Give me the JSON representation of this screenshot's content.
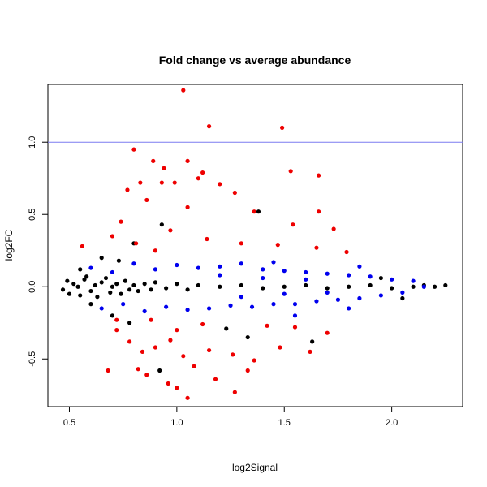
{
  "chart_data": {
    "type": "scatter",
    "title": "Fold change vs average abundance",
    "xlabel": "log2Signal",
    "ylabel": "log2FC",
    "xlim": [
      0.4,
      2.33
    ],
    "ylim": [
      -0.83,
      1.4
    ],
    "xticks": [
      0.5,
      1.0,
      1.5,
      2.0
    ],
    "xtick_labels": [
      "0.5",
      "1.0",
      "1.5",
      "2.0"
    ],
    "yticks": [
      -0.5,
      0.0,
      0.5,
      1.0
    ],
    "ytick_labels": [
      "-0.5",
      "0.0",
      "0.5",
      "1.0"
    ],
    "reference_line": {
      "orientation": "horizontal",
      "y": 1.0,
      "color": "#7b7bf0"
    },
    "grid": false,
    "legend": "none",
    "series": [
      {
        "color": "#000000",
        "points": [
          [
            0.47,
            -0.02
          ],
          [
            0.49,
            0.04
          ],
          [
            0.5,
            -0.05
          ],
          [
            0.52,
            0.02
          ],
          [
            0.54,
            0.0
          ],
          [
            0.55,
            -0.06
          ],
          [
            0.57,
            0.05
          ],
          [
            0.58,
            0.07
          ],
          [
            0.6,
            -0.03
          ],
          [
            0.62,
            0.01
          ],
          [
            0.63,
            -0.07
          ],
          [
            0.65,
            0.03
          ],
          [
            0.67,
            0.06
          ],
          [
            0.69,
            -0.04
          ],
          [
            0.7,
            0.0
          ],
          [
            0.72,
            0.02
          ],
          [
            0.74,
            -0.05
          ],
          [
            0.76,
            0.04
          ],
          [
            0.78,
            -0.02
          ],
          [
            0.8,
            0.01
          ],
          [
            0.82,
            -0.03
          ],
          [
            0.85,
            0.02
          ],
          [
            0.88,
            -0.02
          ],
          [
            0.9,
            0.03
          ],
          [
            0.95,
            -0.01
          ],
          [
            1.0,
            0.02
          ],
          [
            1.05,
            -0.02
          ],
          [
            1.1,
            0.01
          ],
          [
            1.2,
            0.0
          ],
          [
            1.3,
            0.01
          ],
          [
            1.4,
            -0.01
          ],
          [
            1.5,
            0.0
          ],
          [
            1.6,
            0.01
          ],
          [
            1.7,
            -0.01
          ],
          [
            1.8,
            0.0
          ],
          [
            1.9,
            0.01
          ],
          [
            2.0,
            -0.01
          ],
          [
            2.1,
            0.0
          ],
          [
            2.15,
            0.01
          ],
          [
            2.2,
            0.0
          ],
          [
            2.25,
            0.01
          ],
          [
            0.8,
            0.3
          ],
          [
            0.93,
            0.43
          ],
          [
            1.38,
            0.52
          ],
          [
            0.55,
            0.12
          ],
          [
            0.6,
            -0.12
          ],
          [
            0.65,
            0.2
          ],
          [
            0.7,
            -0.2
          ],
          [
            0.73,
            0.18
          ],
          [
            0.78,
            -0.25
          ],
          [
            1.23,
            -0.29
          ],
          [
            1.33,
            -0.35
          ],
          [
            1.63,
            -0.38
          ],
          [
            0.92,
            -0.58
          ],
          [
            2.05,
            -0.08
          ],
          [
            1.95,
            0.06
          ]
        ]
      },
      {
        "color": "#0000ee",
        "points": [
          [
            0.6,
            0.13
          ],
          [
            0.65,
            -0.15
          ],
          [
            0.7,
            0.1
          ],
          [
            0.75,
            -0.12
          ],
          [
            0.8,
            0.16
          ],
          [
            0.85,
            -0.17
          ],
          [
            0.9,
            0.12
          ],
          [
            0.95,
            -0.14
          ],
          [
            1.0,
            0.15
          ],
          [
            1.05,
            -0.16
          ],
          [
            1.1,
            0.13
          ],
          [
            1.15,
            -0.15
          ],
          [
            1.2,
            0.14
          ],
          [
            1.25,
            -0.13
          ],
          [
            1.3,
            0.16
          ],
          [
            1.35,
            -0.14
          ],
          [
            1.4,
            0.12
          ],
          [
            1.45,
            -0.12
          ],
          [
            1.5,
            0.11
          ],
          [
            1.55,
            -0.12
          ],
          [
            1.6,
            0.1
          ],
          [
            1.65,
            -0.1
          ],
          [
            1.7,
            0.09
          ],
          [
            1.75,
            -0.09
          ],
          [
            1.8,
            0.08
          ],
          [
            1.85,
            -0.08
          ],
          [
            1.9,
            0.07
          ],
          [
            1.95,
            -0.06
          ],
          [
            2.0,
            0.05
          ],
          [
            2.05,
            -0.04
          ],
          [
            2.1,
            0.04
          ],
          [
            2.15,
            0.0
          ],
          [
            1.2,
            0.08
          ],
          [
            1.4,
            0.06
          ],
          [
            1.6,
            0.05
          ],
          [
            1.3,
            -0.07
          ],
          [
            1.5,
            -0.05
          ],
          [
            1.7,
            -0.04
          ],
          [
            1.55,
            -0.2
          ],
          [
            1.45,
            0.17
          ],
          [
            1.8,
            -0.15
          ],
          [
            1.85,
            0.14
          ]
        ]
      },
      {
        "color": "#ee0000",
        "points": [
          [
            1.03,
            1.36
          ],
          [
            1.15,
            1.11
          ],
          [
            1.49,
            1.1
          ],
          [
            0.8,
            0.95
          ],
          [
            0.89,
            0.87
          ],
          [
            0.94,
            0.82
          ],
          [
            1.05,
            0.87
          ],
          [
            1.53,
            0.8
          ],
          [
            1.66,
            0.77
          ],
          [
            0.83,
            0.72
          ],
          [
            1.12,
            0.79
          ],
          [
            1.1,
            0.75
          ],
          [
            1.2,
            0.71
          ],
          [
            0.77,
            0.67
          ],
          [
            0.93,
            0.72
          ],
          [
            0.99,
            0.72
          ],
          [
            1.27,
            0.65
          ],
          [
            0.86,
            0.6
          ],
          [
            1.05,
            0.55
          ],
          [
            1.36,
            0.52
          ],
          [
            1.54,
            0.43
          ],
          [
            1.66,
            0.52
          ],
          [
            1.73,
            0.4
          ],
          [
            0.74,
            0.45
          ],
          [
            0.81,
            0.3
          ],
          [
            0.97,
            0.39
          ],
          [
            1.14,
            0.33
          ],
          [
            1.3,
            0.3
          ],
          [
            1.47,
            0.29
          ],
          [
            1.65,
            0.27
          ],
          [
            0.56,
            0.28
          ],
          [
            1.79,
            0.24
          ],
          [
            0.7,
            0.35
          ],
          [
            0.9,
            0.25
          ],
          [
            0.72,
            -0.3
          ],
          [
            0.78,
            -0.38
          ],
          [
            0.84,
            -0.45
          ],
          [
            0.9,
            -0.42
          ],
          [
            0.97,
            -0.37
          ],
          [
            0.82,
            -0.57
          ],
          [
            1.03,
            -0.48
          ],
          [
            1.08,
            -0.55
          ],
          [
            1.15,
            -0.44
          ],
          [
            1.26,
            -0.47
          ],
          [
            0.68,
            -0.58
          ],
          [
            0.86,
            -0.61
          ],
          [
            0.96,
            -0.67
          ],
          [
            1.0,
            -0.7
          ],
          [
            1.05,
            -0.77
          ],
          [
            1.33,
            -0.58
          ],
          [
            1.36,
            -0.51
          ],
          [
            1.48,
            -0.42
          ],
          [
            1.62,
            -0.45
          ],
          [
            1.7,
            -0.32
          ],
          [
            1.18,
            -0.64
          ],
          [
            1.27,
            -0.73
          ],
          [
            0.72,
            -0.23
          ],
          [
            0.88,
            -0.23
          ],
          [
            1.12,
            -0.26
          ],
          [
            1.42,
            -0.27
          ],
          [
            1.0,
            -0.3
          ],
          [
            1.55,
            -0.28
          ]
        ]
      }
    ]
  }
}
